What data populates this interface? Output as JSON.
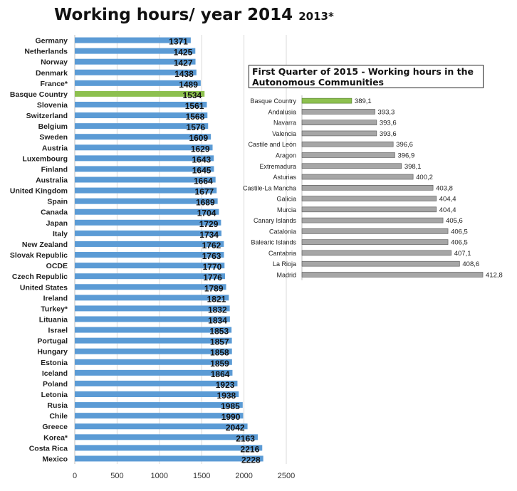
{
  "title_main": "Working hours/ year 2014",
  "title_sub": "2013*",
  "inset_title": "First Quarter of 2015 - Working hours in the Autonomous Communities",
  "colors": {
    "blue_bar": "#5b9bd5",
    "green_bar": "#8dc04f",
    "gray_bar": "#a6a6a6",
    "gridline": "#d9d9d9"
  },
  "chart_data": [
    {
      "type": "bar",
      "orientation": "horizontal",
      "title": "Working hours/ year 2014 2013*",
      "categories": [
        "Germany",
        "Netherlands",
        "Norway",
        "Denmark",
        "France*",
        "Basque Country",
        "Slovenia",
        "Switzerland",
        "Belgium",
        "Sweden",
        "Austria",
        "Luxembourg",
        "Finland",
        "Australia",
        "United Kingdom",
        "Spain",
        "Canada",
        "Japan",
        "Italy",
        "New Zealand",
        "Slovak Republic",
        "OCDE",
        "Czech Republic",
        "United States",
        "Ireland",
        "Turkey*",
        "Lituania",
        "Israel",
        "Portugal",
        "Hungary",
        "Estonia",
        "Iceland",
        "Poland",
        "Letonia",
        "Rusia",
        "Chile",
        "Greece",
        "Korea*",
        "Costa Rica",
        "Mexico"
      ],
      "values": [
        1371,
        1425,
        1427,
        1438,
        1489,
        1534,
        1561,
        1568,
        1576,
        1609,
        1629,
        1643,
        1645,
        1664,
        1677,
        1689,
        1704,
        1729,
        1734,
        1762,
        1763,
        1770,
        1776,
        1789,
        1821,
        1832,
        1834,
        1853,
        1857,
        1858,
        1859,
        1864,
        1923,
        1938,
        1985,
        1990,
        2042,
        2163,
        2216,
        2228
      ],
      "value_labels": [
        "1371",
        "1425",
        "1427",
        "1438",
        "1489",
        "1534",
        "1561",
        "1568",
        "1576",
        "1609",
        "1629",
        "1643",
        "1645",
        "1664",
        "1677",
        "1689",
        "1704",
        "1729",
        "1734",
        "1762",
        "1763",
        "1770",
        "1776",
        "1789",
        "1821",
        "1832",
        "1834",
        "1853",
        "1857",
        "1858",
        "1859",
        "1864",
        "1923",
        "1938",
        "1985",
        "1990",
        "2042",
        "2163",
        "2216",
        "2228"
      ],
      "highlight": "Basque Country",
      "xlim": [
        0,
        2500
      ],
      "ticks": [
        0,
        500,
        1000,
        1500,
        2000,
        2500
      ],
      "tick_labels": [
        "0",
        "500",
        "1000",
        "1500",
        "2000",
        "2500"
      ],
      "grid": true
    },
    {
      "type": "bar",
      "orientation": "horizontal",
      "title": "First Quarter of 2015 - Working hours in the Autonomous Communities",
      "categories": [
        "Basque Country",
        "Andalusia",
        "Navarra",
        "Valencia",
        "Castile and León",
        "Aragon",
        "Extremadura",
        "Asturias",
        "Castile-La Mancha",
        "Galicia",
        "Murcia",
        "Canary Islands",
        "Catalonia",
        "Balearic Islands",
        "Cantabria",
        "La Rioja",
        "Madrid"
      ],
      "values": [
        389.1,
        393.3,
        393.6,
        393.6,
        396.6,
        396.9,
        398.1,
        400.2,
        403.8,
        404.4,
        404.4,
        405.6,
        406.5,
        406.5,
        407.1,
        408.6,
        412.8
      ],
      "value_labels": [
        "389,1",
        "393,3",
        "393,6",
        "393,6",
        "396,6",
        "396,9",
        "398,1",
        "400,2",
        "403,8",
        "404,4",
        "404,4",
        "405,6",
        "406,5",
        "406,5",
        "407,1",
        "408,6",
        "412,8"
      ],
      "highlight": "Basque Country",
      "grid": false
    }
  ]
}
